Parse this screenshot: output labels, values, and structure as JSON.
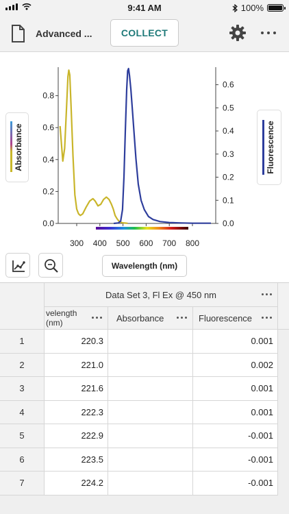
{
  "status_bar": {
    "time": "9:41 AM",
    "battery": "100%",
    "battery_level": 1.0
  },
  "toolbar": {
    "title": "Advanced ...",
    "collect_label": "COLLECT"
  },
  "graph": {
    "left_axis_label": "Absorbance",
    "right_axis_label": "Fluorescence",
    "x_axis_label": "Wavelength (nm)"
  },
  "chart_data": {
    "type": "line",
    "xlabel": "Wavelength (nm)",
    "ylabel": "Absorbance",
    "y2label": "Fluorescence",
    "xlim": [
      220,
      900
    ],
    "ylim": [
      0,
      0.97
    ],
    "y2lim": [
      0,
      0.67
    ],
    "x_ticks": [
      300,
      400,
      500,
      600,
      700,
      800
    ],
    "y_ticks": [
      0.0,
      0.2,
      0.4,
      0.6,
      0.8
    ],
    "y2_ticks": [
      0.0,
      0.1,
      0.2,
      0.3,
      0.4,
      0.5,
      0.6
    ],
    "y_tick_labels": [
      "0.0",
      "0.2",
      "0.4",
      "0.6",
      "0.8"
    ],
    "y2_tick_labels": [
      "0.0",
      "0.1",
      "0.2",
      "0.3",
      "0.4",
      "0.5",
      "0.6"
    ],
    "series": [
      {
        "name": "Absorbance",
        "axis": "left",
        "color": "#c9b52a",
        "x": [
          228,
          234,
          240,
          248,
          256,
          262,
          266,
          270,
          276,
          284,
          292,
          300,
          308,
          316,
          326,
          340,
          356,
          370,
          380,
          392,
          404,
          416,
          428,
          440,
          450,
          458,
          466,
          474,
          482,
          490,
          498,
          510,
          520
        ],
        "y": [
          0.61,
          0.5,
          0.39,
          0.47,
          0.72,
          0.92,
          0.96,
          0.93,
          0.72,
          0.42,
          0.18,
          0.09,
          0.06,
          0.05,
          0.06,
          0.1,
          0.14,
          0.155,
          0.14,
          0.11,
          0.12,
          0.15,
          0.165,
          0.15,
          0.12,
          0.09,
          0.05,
          0.03,
          0.015,
          0.008,
          0.004,
          0.002,
          0.001
        ]
      },
      {
        "name": "Fluorescence",
        "axis": "right",
        "color": "#2d3d9c",
        "x": [
          460,
          480,
          490,
          498,
          504,
          510,
          516,
          520,
          524,
          528,
          534,
          540,
          548,
          556,
          566,
          578,
          592,
          610,
          630,
          660,
          700,
          750,
          800,
          880
        ],
        "y": [
          0.0,
          0.002,
          0.01,
          0.06,
          0.2,
          0.4,
          0.58,
          0.66,
          0.67,
          0.64,
          0.58,
          0.5,
          0.39,
          0.28,
          0.17,
          0.1,
          0.06,
          0.03,
          0.017,
          0.008,
          0.004,
          0.002,
          0.001,
          0.001
        ]
      }
    ]
  },
  "table": {
    "dataset_title": "Data Set 3, Fl Ex @ 450 nm",
    "columns": [
      {
        "label": "velength\n(nm)"
      },
      {
        "label": "Absorbance"
      },
      {
        "label": "Fluorescence"
      }
    ],
    "rows": [
      {
        "index": "1",
        "wavelength": "220.3",
        "absorbance": "",
        "fluorescence": "0.001"
      },
      {
        "index": "2",
        "wavelength": "221.0",
        "absorbance": "",
        "fluorescence": "0.002"
      },
      {
        "index": "3",
        "wavelength": "221.6",
        "absorbance": "",
        "fluorescence": "0.001"
      },
      {
        "index": "4",
        "wavelength": "222.3",
        "absorbance": "",
        "fluorescence": "0.001"
      },
      {
        "index": "5",
        "wavelength": "222.9",
        "absorbance": "",
        "fluorescence": "-0.001"
      },
      {
        "index": "6",
        "wavelength": "223.5",
        "absorbance": "",
        "fluorescence": "-0.001"
      },
      {
        "index": "7",
        "wavelength": "224.2",
        "absorbance": "",
        "fluorescence": "-0.001"
      }
    ]
  }
}
